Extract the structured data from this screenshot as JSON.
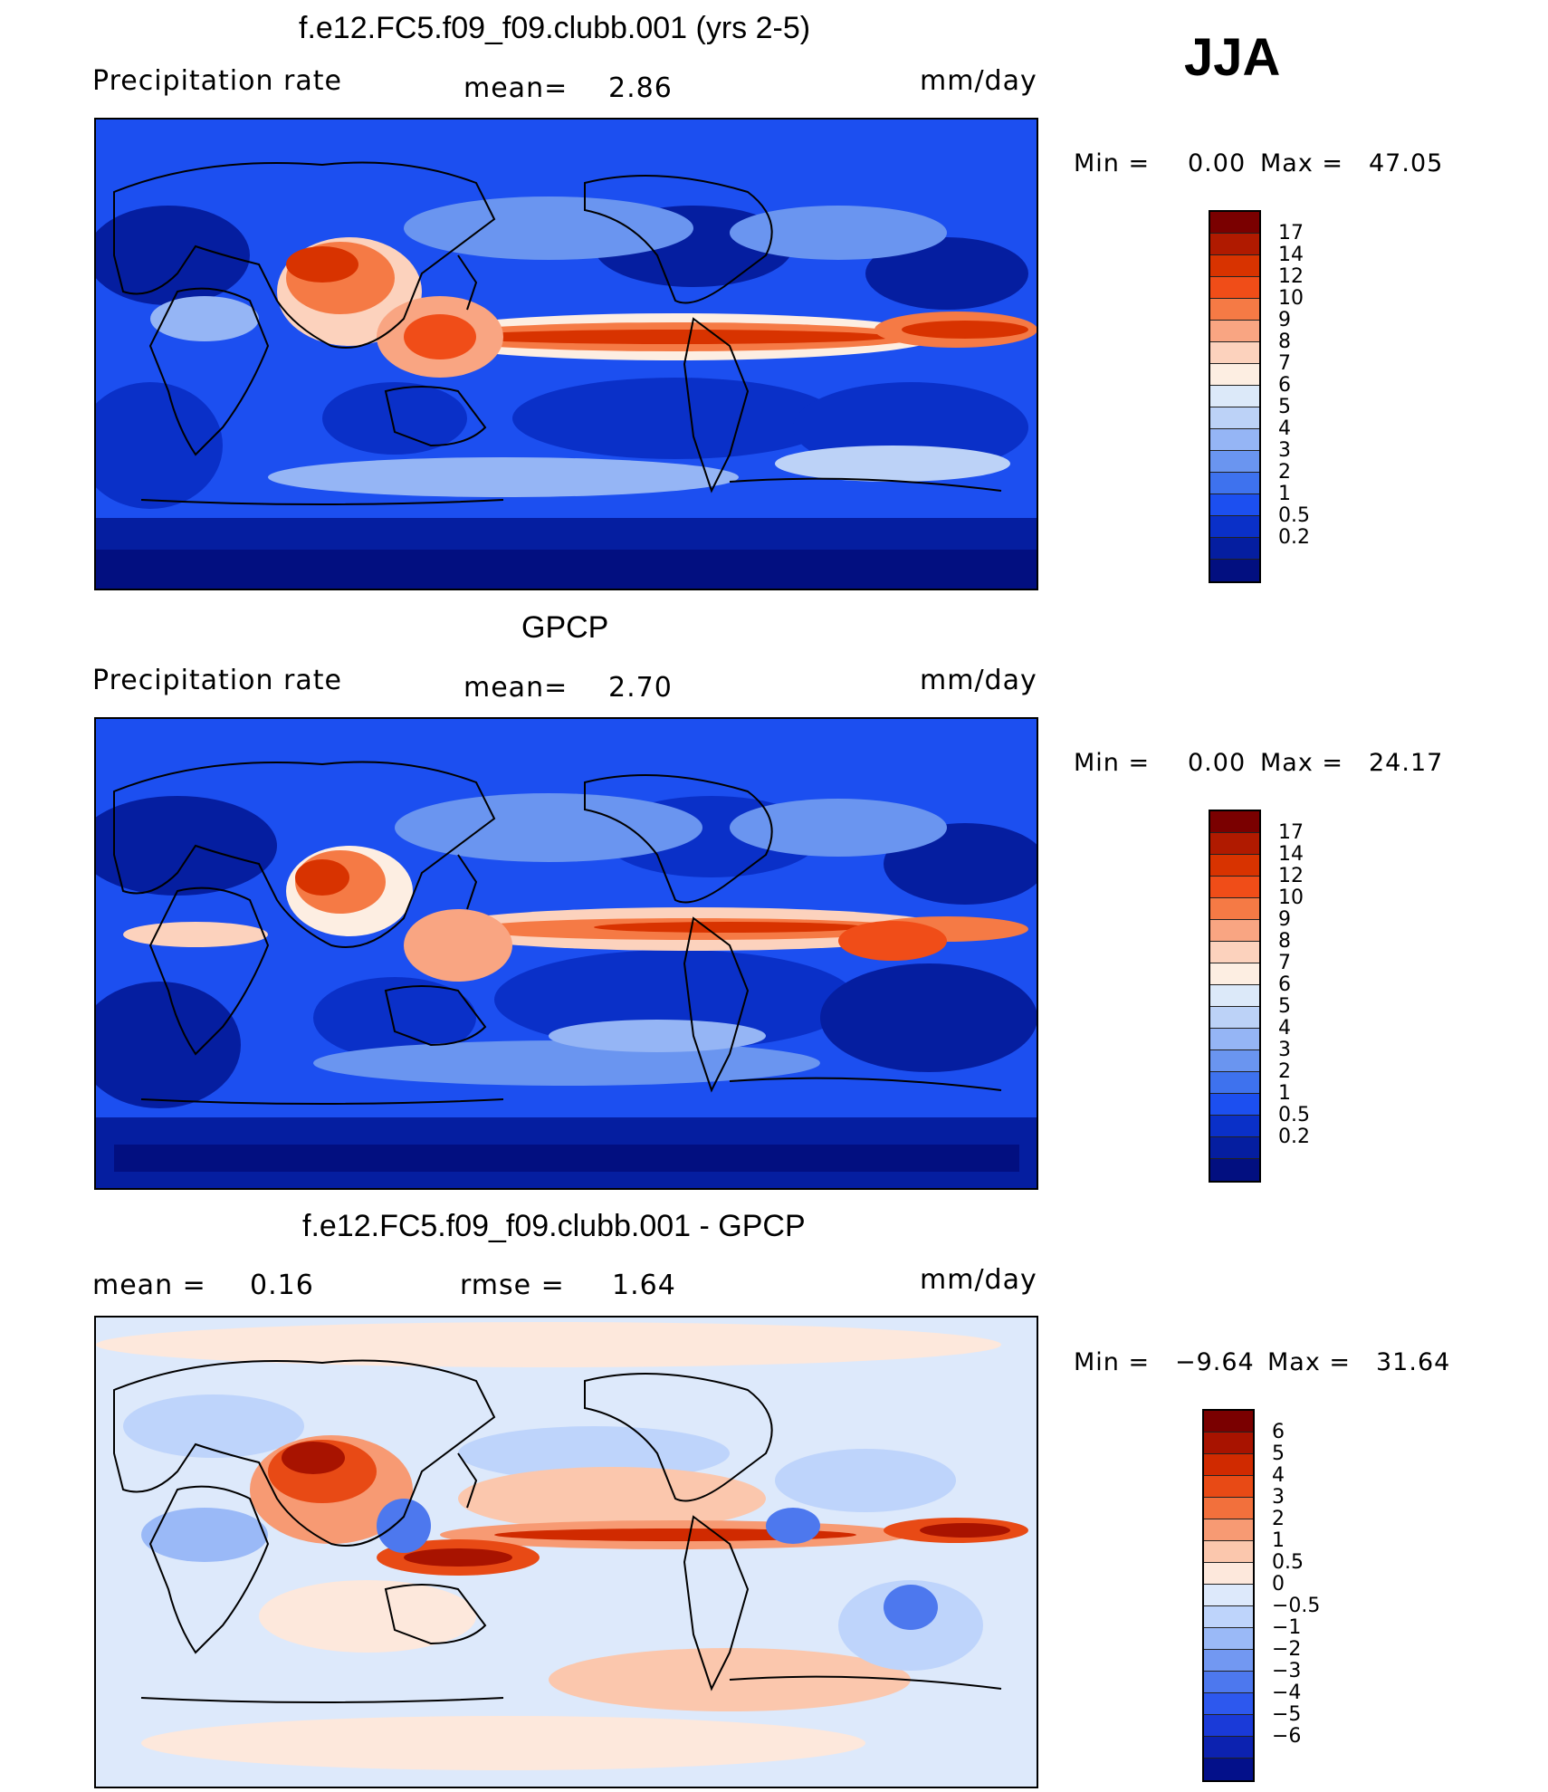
{
  "season": "JJA",
  "panels": [
    {
      "id": "model",
      "title": "f.e12.FC5.f09_f09.clubb.001 (yrs 2-5)",
      "left_label": "Precipitation  rate",
      "mean_label": "mean=",
      "mean_value": "2.86",
      "units": "mm/day",
      "min_label": "Min  =",
      "min_value": "0.00",
      "max_label": "Max  =",
      "max_value": "47.05",
      "colorbar": {
        "colors": [
          "#7a0000",
          "#b01a00",
          "#d83300",
          "#f04d18",
          "#f57a45",
          "#f9a582",
          "#fcd2bd",
          "#fdeee2",
          "#dce9f9",
          "#bcd2f7",
          "#95b5f5",
          "#6a95f0",
          "#3e72ee",
          "#1c4ff0",
          "#0a30c8",
          "#051ea0",
          "#020f80"
        ],
        "labels": [
          "17",
          "14",
          "12",
          "10",
          "9",
          "8",
          "7",
          "6",
          "5",
          "4",
          "3",
          "2",
          "1",
          "0.5",
          "0.2"
        ]
      }
    },
    {
      "id": "obs",
      "title": "GPCP",
      "left_label": "Precipitation  rate",
      "mean_label": "mean=",
      "mean_value": "2.70",
      "units": "mm/day",
      "min_label": "Min  =",
      "min_value": "0.00",
      "max_label": "Max  =",
      "max_value": "24.17",
      "colorbar": {
        "colors": [
          "#7a0000",
          "#b01a00",
          "#d83300",
          "#f04d18",
          "#f57a45",
          "#f9a582",
          "#fcd2bd",
          "#fdeee2",
          "#dce9f9",
          "#bcd2f7",
          "#95b5f5",
          "#6a95f0",
          "#3e72ee",
          "#1c4ff0",
          "#0a30c8",
          "#051ea0",
          "#020f80"
        ],
        "labels": [
          "17",
          "14",
          "12",
          "10",
          "9",
          "8",
          "7",
          "6",
          "5",
          "4",
          "3",
          "2",
          "1",
          "0.5",
          "0.2"
        ]
      }
    },
    {
      "id": "diff",
      "title": "f.e12.FC5.f09_f09.clubb.001 - GPCP",
      "left_label": "mean  =",
      "mean_value": "0.16",
      "rmse_label": "rmse  =",
      "rmse_value": "1.64",
      "units": "mm/day",
      "min_label": "Min  =",
      "min_value": "−9.64",
      "max_label": "Max  =",
      "max_value": "31.64",
      "colorbar": {
        "colors": [
          "#7a0000",
          "#a81300",
          "#d02a00",
          "#e84a15",
          "#f2703c",
          "#f79a73",
          "#fbc7ad",
          "#fde8dc",
          "#dde9fb",
          "#bed4fb",
          "#9ab9f7",
          "#7298f2",
          "#4d78ee",
          "#2d58ee",
          "#1a3ad8",
          "#0c22b0",
          "#03108a"
        ],
        "labels": [
          "6",
          "5",
          "4",
          "3",
          "2",
          "1",
          "0.5",
          "0",
          "−0.5",
          "−1",
          "−2",
          "−3",
          "−4",
          "−5",
          "−6"
        ]
      }
    }
  ]
}
